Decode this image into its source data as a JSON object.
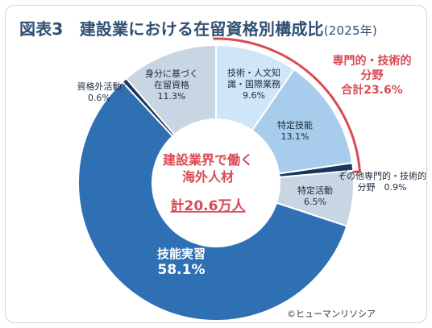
{
  "header": {
    "title": "図表3　建設業における在留資格別構成比",
    "subtitle": "(2025年)"
  },
  "center": {
    "line1": "建設業界で働く",
    "line2": "海外人材",
    "total": "計20.6万人"
  },
  "callout": {
    "line1": "専門的・技術的",
    "line2": "分野",
    "line3": "合計23.6%"
  },
  "copyright": "©ヒューマンリソシア",
  "colors": {
    "dark_blue": "#2f6fb3",
    "light_blue": "#a8cdec",
    "pale_blue": "#cfe5f8",
    "navy": "#17365d",
    "gray_blue": "#c8d5e3",
    "accent_red": "#d94a54",
    "title": "#2f4f72"
  },
  "chart_data": {
    "type": "pie",
    "title": "建設業における在留資格別構成比",
    "categories": [
      "技術・人文知識・国際業務",
      "特定技能",
      "その他専門的・技術的分野",
      "特定活動",
      "技能実習",
      "資格外活動",
      "身分に基づく在留資格"
    ],
    "values": [
      9.6,
      13.1,
      0.9,
      6.5,
      58.1,
      0.6,
      11.3
    ],
    "unit": "%",
    "labels": [
      {
        "lines": [
          "技術・人文知",
          "識・国際業務",
          "9.6%"
        ]
      },
      {
        "lines": [
          "特定技能",
          "13.1%"
        ]
      },
      {
        "lines": [
          "その他専門的・技術的",
          "分野　0.9%"
        ]
      },
      {
        "lines": [
          "特定活動",
          "6.5%"
        ]
      },
      {
        "lines": [
          "技能実習",
          "58.1%"
        ]
      },
      {
        "lines": [
          "資格外活動",
          "0.6%"
        ]
      },
      {
        "lines": [
          "身分に基づく",
          "在留資格",
          "11.3%"
        ]
      }
    ]
  }
}
